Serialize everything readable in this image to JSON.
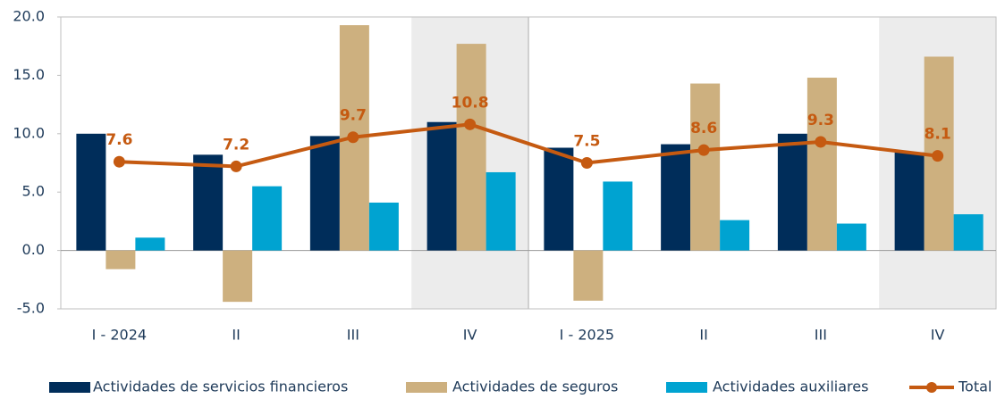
{
  "chart_data": {
    "type": "bar",
    "categories": [
      "I - 2024",
      "II",
      "III",
      "IV",
      "I - 2025",
      "II",
      "III",
      "IV"
    ],
    "series": [
      {
        "name": "Actividades de servicios financieros",
        "color": "#002d5a",
        "type": "bar",
        "values": [
          10.0,
          8.2,
          9.8,
          11.0,
          8.8,
          9.1,
          10.0,
          8.4
        ]
      },
      {
        "name": "Actividades de seguros",
        "color": "#cdb07f",
        "type": "bar",
        "values": [
          -1.6,
          -4.4,
          19.3,
          17.7,
          -4.3,
          14.3,
          14.8,
          16.6
        ]
      },
      {
        "name": "Actividades auxiliares",
        "color": "#00a3d1",
        "type": "bar",
        "values": [
          1.1,
          5.5,
          4.1,
          6.7,
          5.9,
          2.6,
          2.3,
          3.1
        ]
      },
      {
        "name": "Total",
        "color": "#c55a11",
        "type": "line",
        "values": [
          7.6,
          7.2,
          9.7,
          10.8,
          7.5,
          8.6,
          9.3,
          8.1
        ]
      }
    ],
    "ylim": [
      -5,
      20
    ],
    "yticks": [
      {
        "value": -5,
        "label": "-5.0"
      },
      {
        "value": 0,
        "label": "0.0"
      },
      {
        "value": 5,
        "label": "5.0"
      },
      {
        "value": 10,
        "label": "10.0"
      },
      {
        "value": 15,
        "label": "15.0"
      },
      {
        "value": 20,
        "label": "20.0"
      }
    ],
    "grid": false,
    "legend": "bottom"
  }
}
